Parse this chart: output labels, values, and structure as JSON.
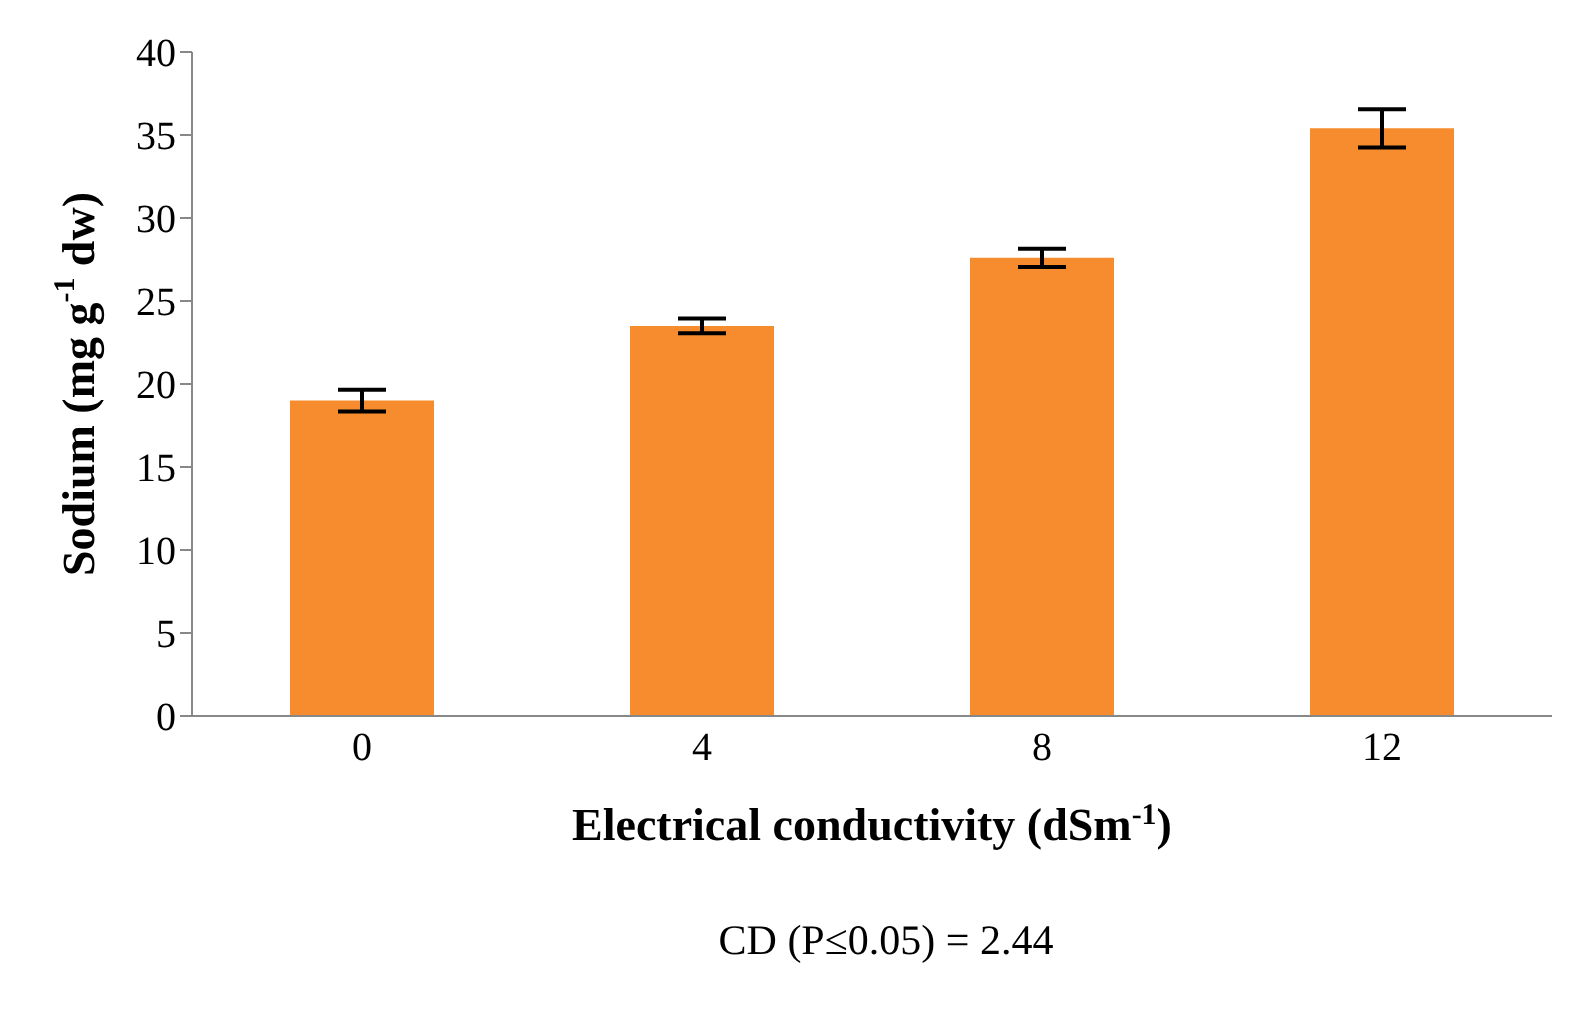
{
  "chart_data": {
    "type": "bar",
    "xlabel": "Electrical conductivity (dSm$^{-1}$)",
    "ylabel": "Sodium (mg g$^{-1}$ dw)",
    "categories": [
      "0",
      "4",
      "8",
      "12"
    ],
    "values": [
      19.0,
      23.5,
      27.6,
      35.4
    ],
    "errors": [
      0.65,
      0.45,
      0.55,
      1.15
    ],
    "color": "#f68c2d",
    "ylim": [
      0,
      40
    ],
    "yticks": [
      0,
      5,
      10,
      15,
      20,
      25,
      30,
      35,
      40
    ],
    "annotations": [
      "CD (P≤0.05) = 2.44"
    ]
  }
}
